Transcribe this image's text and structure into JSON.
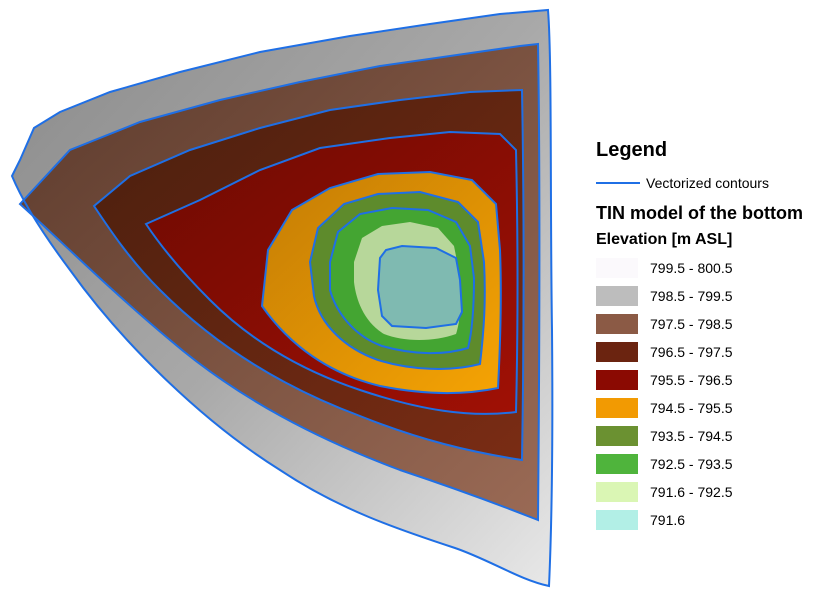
{
  "map": {
    "contour_color": "#1f6fe5"
  },
  "legend": {
    "title": "Legend",
    "contour_label": "Vectorized contours",
    "layer_title": "TIN model of the bottom",
    "field_title": "Elevation [m ASL]",
    "classes": [
      {
        "label": "799.5 - 800.5",
        "color": "#fbf9fc"
      },
      {
        "label": "798.5 - 799.5",
        "color": "#bdbdbd"
      },
      {
        "label": "797.5 - 798.5",
        "color": "#8b5a45"
      },
      {
        "label": "796.5 - 797.5",
        "color": "#6b2410"
      },
      {
        "label": "795.5 - 796.5",
        "color": "#8b0a02"
      },
      {
        "label": "794.5 - 795.5",
        "color": "#f29a02"
      },
      {
        "label": "793.5 - 794.5",
        "color": "#6b9131"
      },
      {
        "label": "792.5 - 793.5",
        "color": "#4fb43c"
      },
      {
        "label": "791.6 - 792.5",
        "color": "#daf6b4"
      },
      {
        "label": "791.6",
        "color": "#b2efe6"
      }
    ]
  }
}
